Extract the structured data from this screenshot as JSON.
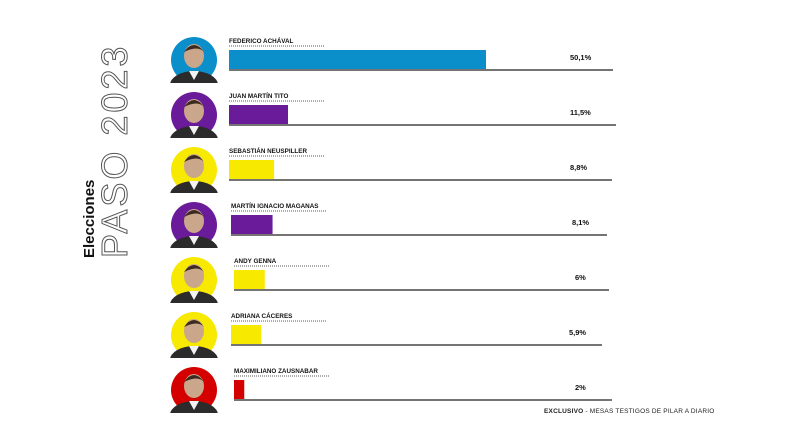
{
  "header": {
    "kicker": "Elecciones",
    "title": "PASO 2023"
  },
  "footer": {
    "bold": "EXCLUSIVO",
    "rest": " - MESAS TESTIGOS DE PILAR A DIARIO"
  },
  "chart_data": {
    "type": "bar",
    "orientation": "horizontal",
    "xlim": [
      0,
      60
    ],
    "categories": [
      "FEDERICO ACHÁVAL",
      "JUAN MARTÍN TITO",
      "SEBASTIÁN NEUSPILLER",
      "MARTÍN IGNACIO MAGANAS",
      "ANDY GENNA",
      "ADRIANA CÁCERES",
      "MAXIMILIANO ZAUSNABAR"
    ],
    "values": [
      50.1,
      11.5,
      8.8,
      8.1,
      6,
      5.9,
      2
    ],
    "value_labels": [
      "50,1%",
      "11,5%",
      "8,8%",
      "8,1%",
      "6%",
      "5,9%",
      "2%"
    ],
    "colors": [
      "#0a8fcb",
      "#6a1b9a",
      "#f7e900",
      "#6a1b9a",
      "#f7e900",
      "#f7e900",
      "#d40000"
    ],
    "avatar_colors": [
      "#0a8fcb",
      "#6a1b9a",
      "#f7e900",
      "#6a1b9a",
      "#f7e900",
      "#f7e900",
      "#d40000"
    ]
  }
}
